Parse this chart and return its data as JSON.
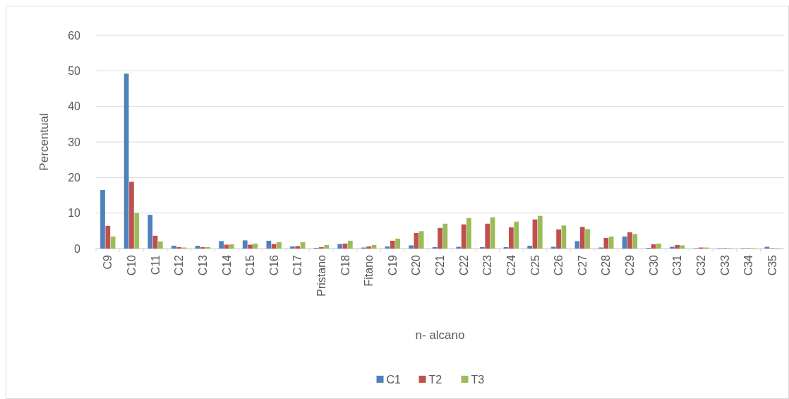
{
  "chart_data": {
    "type": "bar",
    "xlabel": "n- alcano",
    "ylabel": "Percentual",
    "categories": [
      "C9",
      "C10",
      "C11",
      "C12",
      "C13",
      "C14",
      "C15",
      "C16",
      "C17",
      "Pristano",
      "C18",
      "Fitano",
      "C19",
      "C20",
      "C21",
      "C22",
      "C23",
      "C24",
      "C25",
      "C26",
      "C27",
      "C28",
      "C29",
      "C30",
      "C31",
      "C32",
      "C33",
      "C34",
      "C35"
    ],
    "series": [
      {
        "name": "C1",
        "color": "#4f81bd",
        "values": [
          16.5,
          49.2,
          9.5,
          0.8,
          0.8,
          2.1,
          2.3,
          2.2,
          0.6,
          0.2,
          1.3,
          0.3,
          0.6,
          0.9,
          0.4,
          0.5,
          0.4,
          0.4,
          0.8,
          0.5,
          2.1,
          0.3,
          3.4,
          0.2,
          0.5,
          0.1,
          0.1,
          0.1,
          0.5
        ]
      },
      {
        "name": "T2",
        "color": "#c0504d",
        "values": [
          6.4,
          18.8,
          3.6,
          0.4,
          0.4,
          1.1,
          1.1,
          1.3,
          0.7,
          0.4,
          1.4,
          0.6,
          2.2,
          4.4,
          5.8,
          6.8,
          7.0,
          6.0,
          8.2,
          5.4,
          6.1,
          3.0,
          4.6,
          1.2,
          1.0,
          0.3,
          0.1,
          0.1,
          0.1
        ]
      },
      {
        "name": "T3",
        "color": "#9bbb59",
        "values": [
          3.4,
          10.0,
          2.0,
          0.3,
          0.4,
          1.2,
          1.4,
          1.8,
          1.8,
          1.0,
          2.2,
          1.0,
          2.8,
          4.9,
          7.0,
          8.6,
          8.8,
          7.6,
          9.2,
          6.5,
          5.5,
          3.4,
          4.1,
          1.4,
          0.9,
          0.3,
          0.1,
          0.1,
          0.1
        ]
      }
    ],
    "ylim": [
      0,
      60
    ],
    "yticks": [
      0,
      10,
      20,
      30,
      40,
      50,
      60
    ],
    "grid": "y",
    "legend": "bottom"
  }
}
